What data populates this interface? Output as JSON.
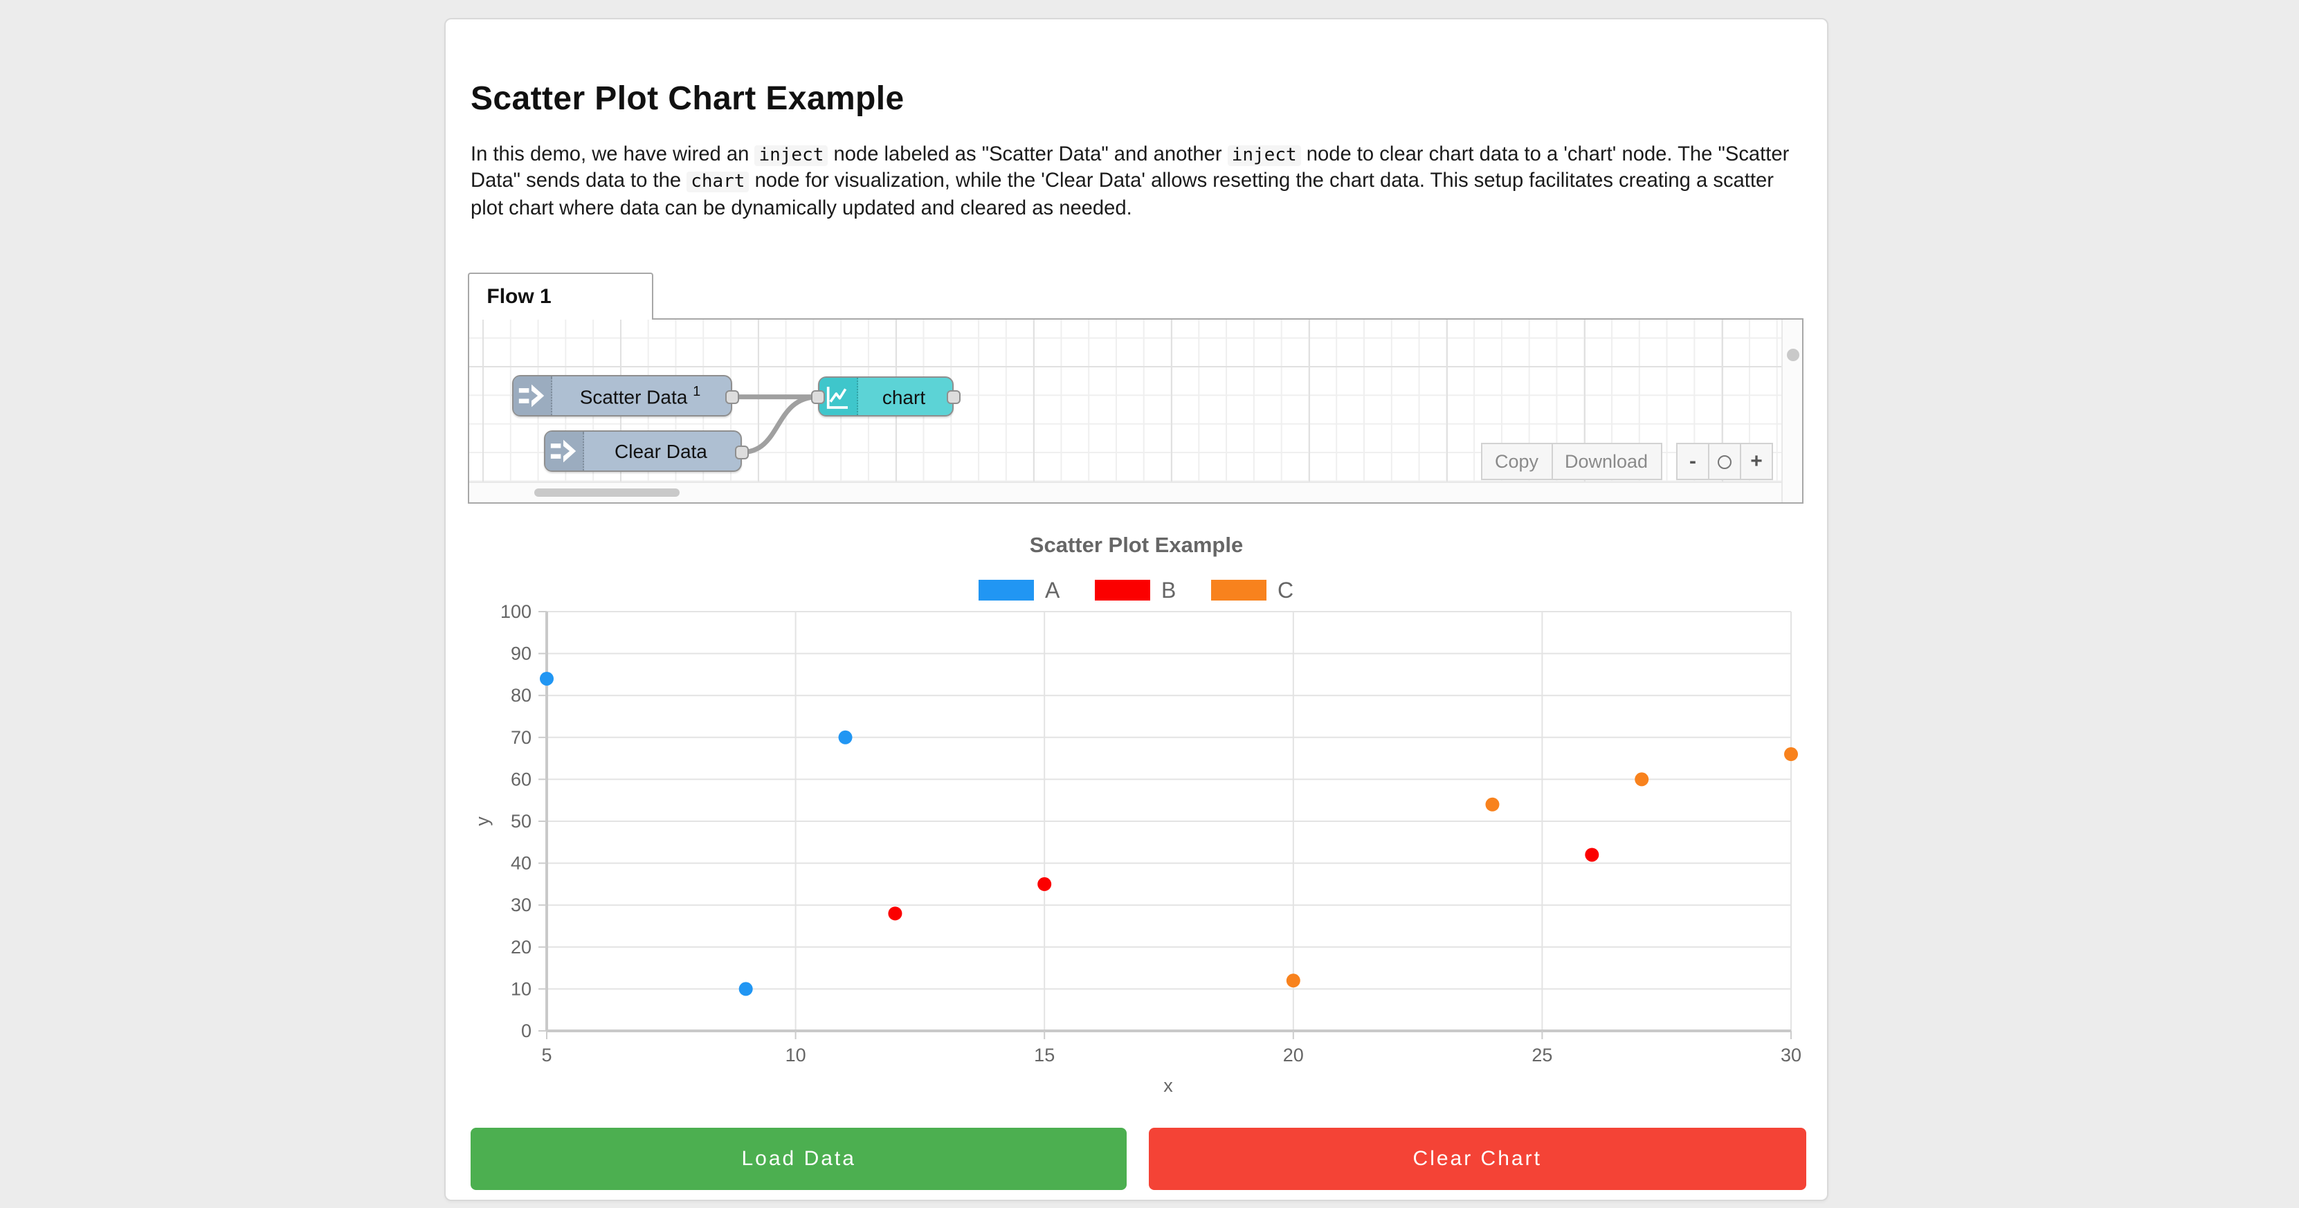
{
  "page": {
    "heading": "Scatter Plot Chart Example"
  },
  "intro": {
    "lines": [
      [
        {
          "t": "In this demo, we have wired an "
        },
        {
          "t": "inject",
          "code": true
        },
        {
          "t": " node labeled as \"Scatter Data\" and another "
        },
        {
          "t": "inject",
          "code": true
        },
        {
          "t": " node to clear chart data to a 'chart' node. The \"Scatter"
        }
      ],
      [
        {
          "t": "Data\" sends data to the "
        },
        {
          "t": "chart",
          "code": true
        },
        {
          "t": " node for visualization, while the 'Clear Data' allows resetting the chart data. This setup facilitates creating a scatter"
        }
      ],
      [
        {
          "t": "plot chart where data can be dynamically updated and cleared as needed."
        }
      ]
    ]
  },
  "flow_editor": {
    "tab_label": "Flow 1",
    "nodes": [
      {
        "label": "Scatter Data",
        "sup": "1",
        "type": "inject"
      },
      {
        "label": "Clear Data",
        "type": "inject"
      },
      {
        "label": "chart",
        "type": "chart"
      }
    ],
    "toolbar": {
      "copy_label": "Copy",
      "download_label": "Download"
    },
    "zoom_controls": {
      "minus_label": "-",
      "plus_label": "+"
    }
  },
  "chart_data": {
    "type": "scatter",
    "title": "Scatter Plot Example",
    "xlabel": "x",
    "ylabel": "y",
    "xlim": [
      5,
      30
    ],
    "ylim": [
      0,
      100
    ],
    "x_ticks": [
      5,
      10,
      15,
      20,
      25,
      30
    ],
    "y_ticks": [
      0,
      10,
      20,
      30,
      40,
      50,
      60,
      70,
      80,
      90,
      100
    ],
    "grid": true,
    "legend_position": "top",
    "series": [
      {
        "name": "A",
        "color": "#2196f3",
        "points": [
          [
            5,
            84
          ],
          [
            9,
            10
          ],
          [
            11,
            70
          ]
        ]
      },
      {
        "name": "B",
        "color": "#fb0000",
        "points": [
          [
            12,
            28
          ],
          [
            15,
            35
          ],
          [
            26,
            42
          ]
        ]
      },
      {
        "name": "C",
        "color": "#f8821d",
        "points": [
          [
            20,
            12
          ],
          [
            24,
            54
          ],
          [
            27,
            60
          ],
          [
            30,
            66
          ]
        ]
      }
    ]
  },
  "actions": {
    "load_label": "Load Data",
    "clear_label": "Clear Chart"
  },
  "colors": {
    "page_bg": "#ececec",
    "inject_node": "#aebfd2",
    "chart_node": "#5cd3d6",
    "load_button": "#4caf50",
    "clear_button": "#f44336",
    "wire": "#a0a0a0",
    "chart_text": "#666666"
  }
}
